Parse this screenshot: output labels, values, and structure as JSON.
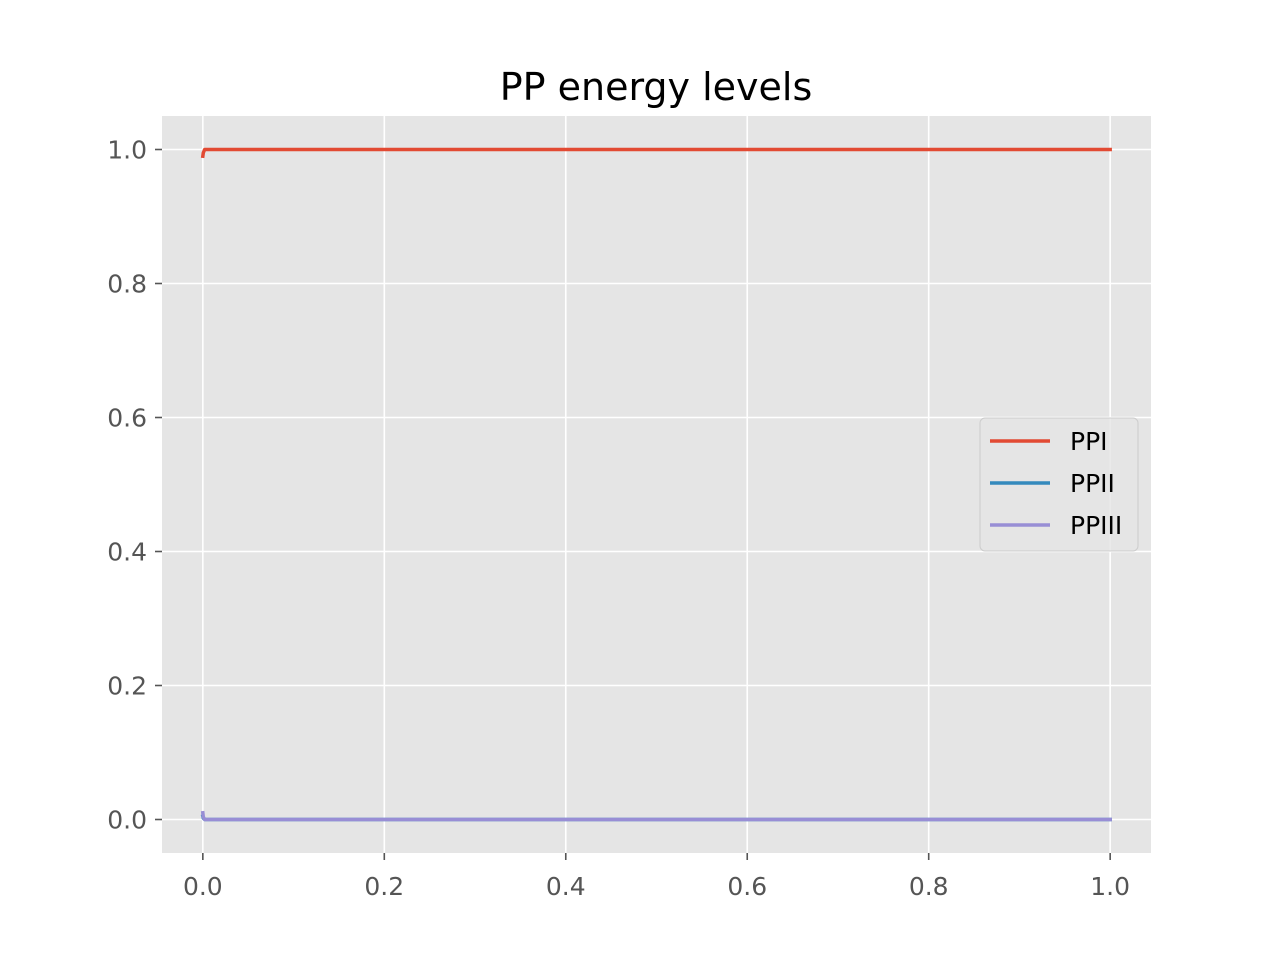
{
  "chart_data": {
    "type": "line",
    "title": "PP energy levels",
    "xlabel": "",
    "ylabel": "",
    "xlim": [
      -0.045,
      1.045
    ],
    "ylim": [
      -0.05,
      1.05
    ],
    "grid": true,
    "legend_position": "center-right",
    "x_ticks": [
      "0.0",
      "0.2",
      "0.4",
      "0.6",
      "0.8",
      "1.0"
    ],
    "y_ticks": [
      "0.0",
      "0.2",
      "0.4",
      "0.6",
      "0.8",
      "1.0"
    ],
    "series": [
      {
        "name": "PPI",
        "color": "#E24A33",
        "points": [
          [
            0.0,
            0.99
          ],
          [
            0.0005,
            0.995
          ],
          [
            0.002,
            1.0
          ],
          [
            1.0,
            1.0
          ]
        ]
      },
      {
        "name": "PPII",
        "color": "#348ABD",
        "points": [
          [
            0.0,
            0.005
          ],
          [
            0.0005,
            0.002
          ],
          [
            0.002,
            0.0
          ],
          [
            1.0,
            0.0
          ]
        ]
      },
      {
        "name": "PPIII",
        "color": "#988ED5",
        "points": [
          [
            0.0,
            0.01
          ],
          [
            0.0005,
            0.004
          ],
          [
            0.002,
            0.0
          ],
          [
            1.0,
            0.0
          ]
        ]
      }
    ]
  }
}
